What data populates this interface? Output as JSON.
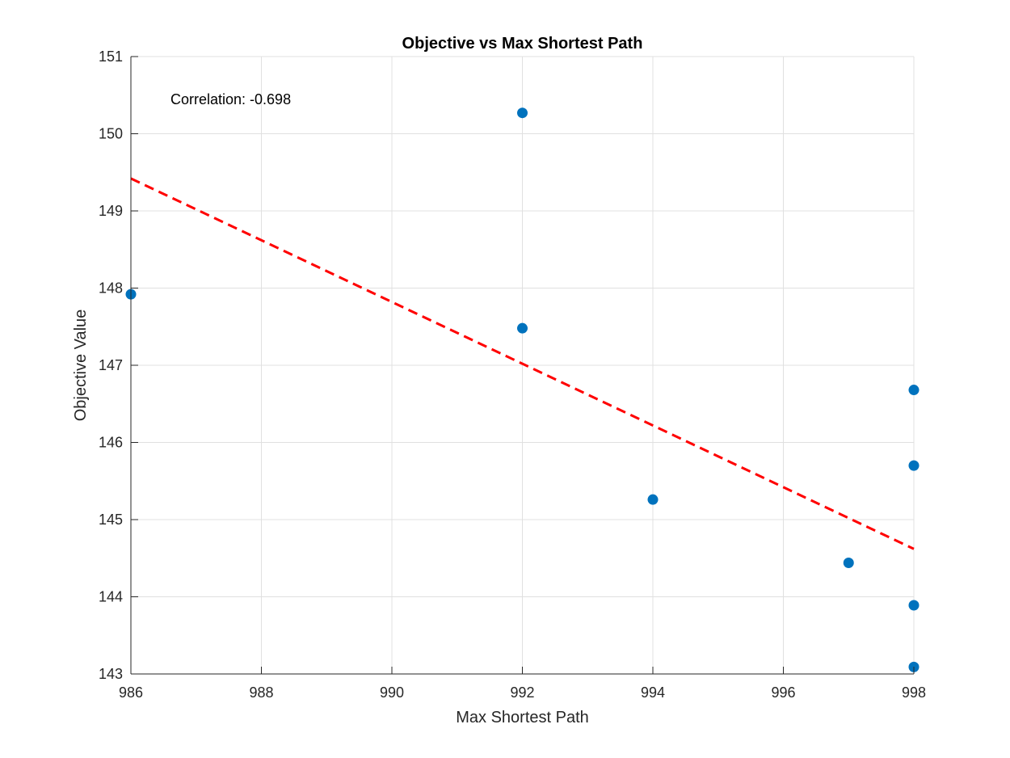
{
  "chart_data": {
    "type": "scatter",
    "title": "Objective vs Max Shortest Path",
    "xlabel": "Max Shortest Path",
    "ylabel": "Objective Value",
    "xlim": [
      986,
      998
    ],
    "ylim": [
      143,
      151
    ],
    "xticks": [
      986,
      988,
      990,
      992,
      994,
      996,
      998
    ],
    "yticks": [
      143,
      144,
      145,
      146,
      147,
      148,
      149,
      150,
      151
    ],
    "grid": true,
    "points": [
      {
        "x": 986,
        "y": 147.92
      },
      {
        "x": 992,
        "y": 150.27
      },
      {
        "x": 992,
        "y": 147.48
      },
      {
        "x": 994,
        "y": 145.26
      },
      {
        "x": 997,
        "y": 144.44
      },
      {
        "x": 998,
        "y": 146.68
      },
      {
        "x": 998,
        "y": 145.7
      },
      {
        "x": 998,
        "y": 143.89
      },
      {
        "x": 998,
        "y": 143.09
      }
    ],
    "trendline": {
      "x": [
        986,
        998
      ],
      "y": [
        149.42,
        144.62
      ]
    },
    "annotation": "Correlation: -0.698",
    "colors": {
      "points": "#0072BD",
      "trendline": "#FF0000",
      "grid": "#E0E0E0",
      "axis": "#262626"
    }
  }
}
